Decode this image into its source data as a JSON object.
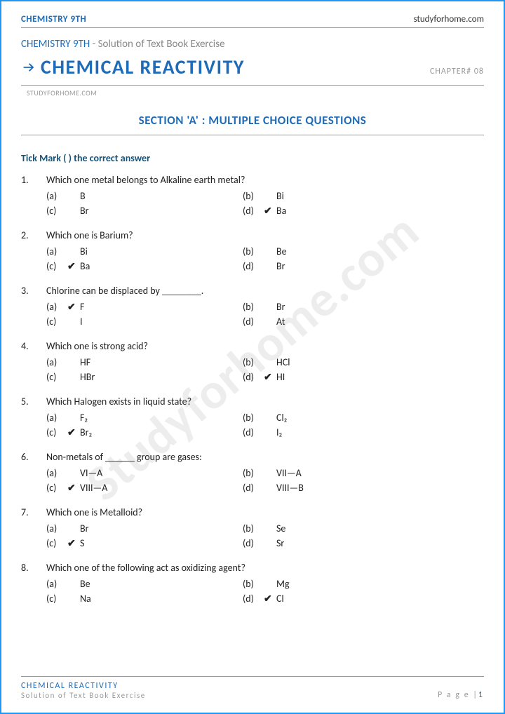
{
  "header": {
    "top_left": "CHEMISTRY 9TH",
    "top_right": "studyforhome.com",
    "subtitle_prefix": "CHEMISTRY 9TH",
    "subtitle_suffix": " - Solution of Text Book Exercise",
    "main_title": "CHEMICAL REACTIVITY",
    "chapter": "CHAPTER# 08",
    "sub_url": "STUDYFORHOME.COM"
  },
  "section_title": "SECTION 'A' : MULTIPLE CHOICE QUESTIONS",
  "instruction": "Tick Mark ( ) the correct answer",
  "watermark": "Studyforhome.com",
  "questions": [
    {
      "num": "1.",
      "text": "Which one metal belongs to Alkaline earth metal?",
      "opts": {
        "a": "B",
        "b": "Bi",
        "c": "Br",
        "d": "Ba"
      },
      "correct": "d"
    },
    {
      "num": "2.",
      "text": "Which one is Barium?",
      "opts": {
        "a": "Bi",
        "b": "Be",
        "c": "Ba",
        "d": "Br"
      },
      "correct": "c"
    },
    {
      "num": "3.",
      "text": "Chlorine can be displaced by ________.",
      "opts": {
        "a": "F",
        "b": "Br",
        "c": "I",
        "d": "At"
      },
      "correct": "a"
    },
    {
      "num": "4.",
      "text": "Which one is strong acid?",
      "opts": {
        "a": "HF",
        "b": "HCl",
        "c": "HBr",
        "d": "HI"
      },
      "correct": "d"
    },
    {
      "num": "5.",
      "text": "Which Halogen exists in liquid state?",
      "opts": {
        "a": "F₂",
        "b": "Cl₂",
        "c": "Br₂",
        "d": "I₂"
      },
      "correct": "c"
    },
    {
      "num": "6.",
      "text": "Non-metals of ______ group are gases:",
      "opts": {
        "a": "VI—A",
        "b": "VII—A",
        "c": "VIII—A",
        "d": "VIII—B"
      },
      "correct": "c"
    },
    {
      "num": "7.",
      "text": "Which one is Metalloid?",
      "opts": {
        "a": "Br",
        "b": "Se",
        "c": "S",
        "d": "Sr"
      },
      "correct": "c"
    },
    {
      "num": "8.",
      "text": "Which one of the following act as oxidizing agent?",
      "opts": {
        "a": "Be",
        "b": "Mg",
        "c": "Na",
        "d": "Cl"
      },
      "correct": "d"
    }
  ],
  "footer": {
    "title": "CHEMICAL REACTIVITY",
    "sub": "Solution of Text Book Exercise",
    "page_label": "P a g e  |",
    "page_num": "1"
  },
  "colors": {
    "primary": "#1e6bb8",
    "border": "#2196f3",
    "grey": "#999999",
    "text": "#222222"
  }
}
